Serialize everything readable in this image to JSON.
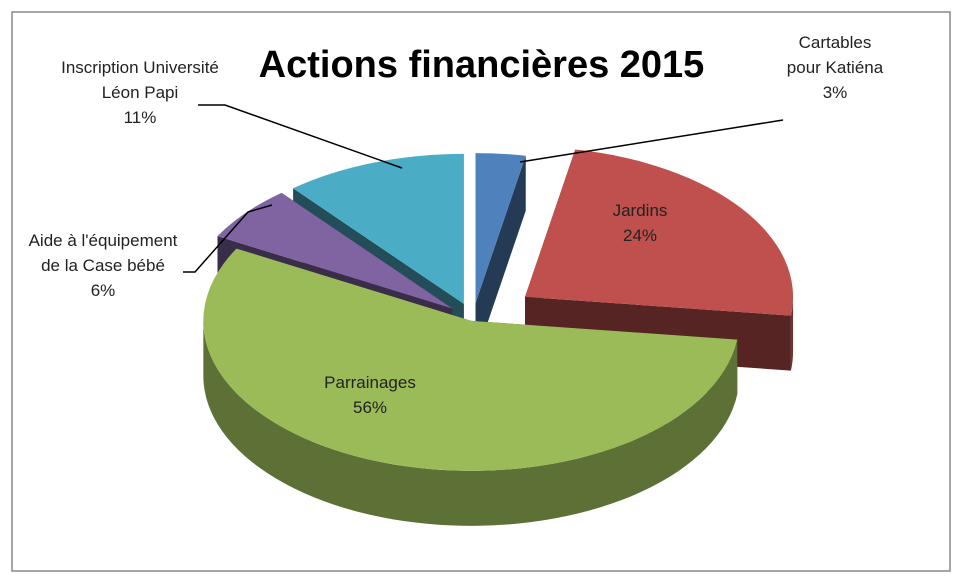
{
  "chart_data": {
    "type": "pie",
    "title": "Actions financières 2015",
    "categories": [
      "Cartables pour Katiéna",
      "Jardins",
      "Parrainages",
      "Aide à l'équipement de la Case bébé",
      "Inscription Université Léon Papi"
    ],
    "values": [
      3,
      24,
      56,
      6,
      11
    ],
    "value_labels": [
      "3%",
      "24%",
      "56%",
      "6%",
      "11%"
    ],
    "colors": [
      "#4f81bd",
      "#c0504d",
      "#9bbb59",
      "#8064a2",
      "#4bacc6"
    ]
  }
}
